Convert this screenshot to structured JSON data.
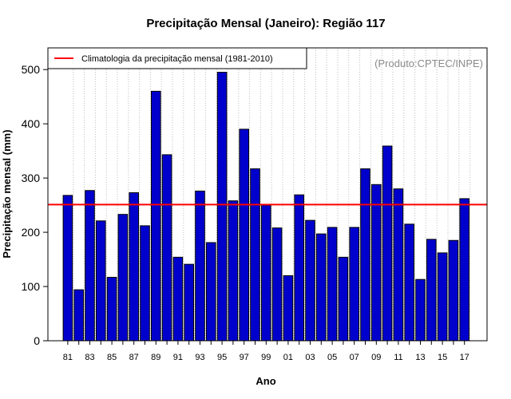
{
  "chart_data": {
    "type": "bar",
    "title": "Precipitação Mensal (Janeiro): Região 117",
    "xlabel": "Ano",
    "ylabel": "Precipitação mensal (mm)",
    "ylim": [
      0,
      540
    ],
    "yticks": [
      0,
      100,
      200,
      300,
      400,
      500
    ],
    "grid": "vertical dotted",
    "legend_position": "top-left",
    "watermark": "(Produto:CPTEC/INPE)",
    "categories": [
      "81",
      "82",
      "83",
      "84",
      "85",
      "86",
      "87",
      "88",
      "89",
      "90",
      "91",
      "92",
      "93",
      "94",
      "95",
      "96",
      "97",
      "98",
      "99",
      "00",
      "01",
      "02",
      "03",
      "04",
      "05",
      "06",
      "07",
      "08",
      "09",
      "10",
      "11",
      "12",
      "13",
      "14",
      "15",
      "16",
      "17"
    ],
    "xtick_labels": [
      "81",
      "83",
      "85",
      "87",
      "89",
      "91",
      "93",
      "95",
      "97",
      "99",
      "01",
      "03",
      "05",
      "07",
      "09",
      "11",
      "13",
      "15",
      "17"
    ],
    "series": [
      {
        "name": "Precipitação mensal",
        "color": "#0000cd",
        "values": [
          268,
          94,
          277,
          221,
          117,
          233,
          273,
          212,
          460,
          343,
          154,
          141,
          276,
          181,
          495,
          258,
          390,
          317,
          250,
          208,
          120,
          269,
          222,
          197,
          209,
          154,
          209,
          317,
          288,
          359,
          280,
          215,
          113,
          187,
          162,
          185,
          262
        ]
      }
    ],
    "reference_line": {
      "label": "Climatologia da precipitação mensal (1981-2010)",
      "value": 251,
      "color": "#ff0000"
    }
  }
}
